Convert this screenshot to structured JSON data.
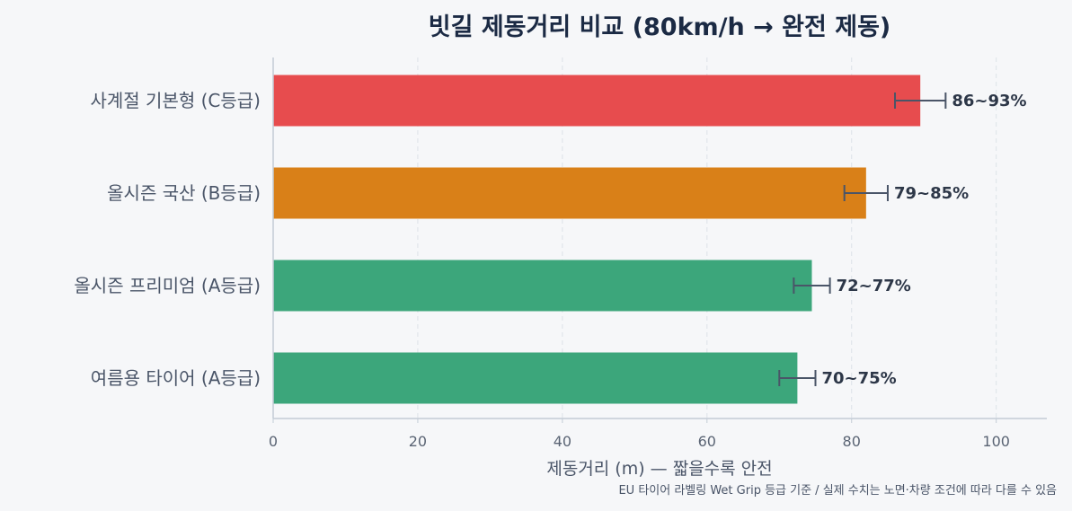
{
  "chart_data": {
    "type": "bar",
    "orientation": "horizontal",
    "title": "빗길 제동거리 비교 (80km/h → 완전 제동)",
    "xlabel": "제동거리 (m) — 짧을수록 안전",
    "ylabel": "",
    "footnote": "EU 타이어 라벨링 Wet Grip 등급 기준 / 실제 수치는 노면·차량 조건에 따라 다를 수 있음",
    "xlim": [
      0,
      107
    ],
    "xticks": [
      0,
      20,
      40,
      60,
      80,
      100
    ],
    "grid": "x-dashed",
    "categories": [
      "사계절 기본형 (C등급)",
      "올시즌 국산 (B등급)",
      "올시즌 프리미엄 (A등급)",
      "여름용 타이어 (A등급)"
    ],
    "values": [
      89.5,
      82,
      74.5,
      72.5
    ],
    "error_ranges": [
      [
        86,
        93
      ],
      [
        79,
        85
      ],
      [
        72,
        77
      ],
      [
        70,
        75
      ]
    ],
    "data_labels": [
      "86~93%",
      "79~85%",
      "72~77%",
      "70~75%"
    ],
    "colors": [
      "#e74c4e",
      "#d98018",
      "#3ca67b",
      "#3ca67b"
    ],
    "error_bar_color": "#4a5568"
  }
}
